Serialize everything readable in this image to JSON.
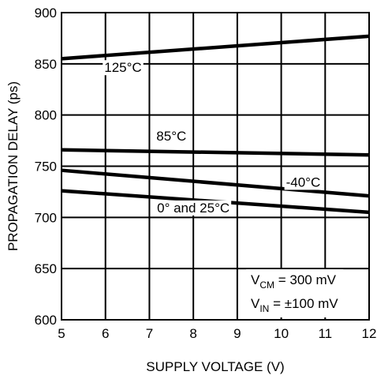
{
  "chart_data": {
    "type": "line",
    "xlabel": "SUPPLY VOLTAGE (V)",
    "ylabel": "PROPAGATION DELAY (ps)",
    "xlim": [
      5,
      12
    ],
    "ylim": [
      600,
      900
    ],
    "xticks": [
      5,
      6,
      7,
      8,
      9,
      10,
      11,
      12
    ],
    "yticks": [
      600,
      650,
      700,
      750,
      800,
      850,
      900
    ],
    "grid": true,
    "series": [
      {
        "name": "125°C",
        "x": [
          5,
          12
        ],
        "y": [
          855,
          877
        ]
      },
      {
        "name": "85°C",
        "x": [
          5,
          12
        ],
        "y": [
          766,
          761
        ]
      },
      {
        "name": "-40°C",
        "x": [
          5,
          12
        ],
        "y": [
          746,
          721
        ]
      },
      {
        "name": "0° and 25°C",
        "x": [
          5,
          12
        ],
        "y": [
          726,
          705
        ]
      }
    ],
    "annotations": [
      {
        "main": "V",
        "sub": "CM",
        "rest": " = 300 mV"
      },
      {
        "main": "V",
        "sub": "IN",
        "rest": " = ±100 mV"
      }
    ]
  }
}
